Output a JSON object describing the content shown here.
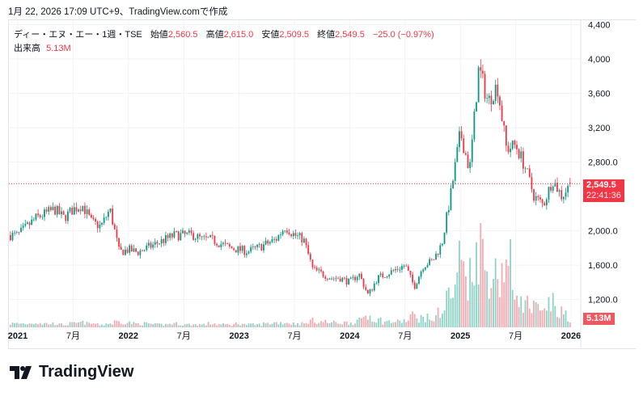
{
  "caption": "1月 22, 2026 17:09 UTC+9、TradingView.comで作成",
  "legend": {
    "symbol": "ディー・エヌ・エー・1週・TSE",
    "open_label": "始値",
    "open": "2,560.5",
    "high_label": "高値",
    "high": "2,615.0",
    "low_label": "安値",
    "low": "2,509.5",
    "close_label": "終値",
    "close": "2,549.5",
    "change": "−25.0 (−0.97%)",
    "volume_label": "出来高",
    "volume": "5.13M"
  },
  "price_tag": {
    "price": "2,549.5",
    "countdown": "22:41:36"
  },
  "volume_tag": "5.13M",
  "brand": "TradingView",
  "colors": {
    "up": "#089981",
    "down": "#f23645",
    "up_vol": "#8fd3c6",
    "down_vol": "#f7a9b0"
  },
  "chart_data": {
    "type": "candlestick",
    "interval": "1 week",
    "y_ticks": [
      "4,400",
      "4,000",
      "3,600",
      "3,200",
      "2,800.0",
      "2,000.0",
      "1,600.0",
      "1,200.0"
    ],
    "y_tick_values": [
      4400,
      4000,
      3600,
      3200,
      2800,
      2000,
      1600,
      1200
    ],
    "x_ticks": [
      "2021",
      "7月",
      "2022",
      "7月",
      "2023",
      "7月",
      "2024",
      "7月",
      "2025",
      "7月",
      "2026"
    ],
    "x_tick_months": [
      0,
      6,
      12,
      18,
      24,
      30,
      36,
      42,
      48,
      54,
      60
    ],
    "start_month": "2021-01",
    "monthly_close": [
      1950,
      2050,
      2150,
      2200,
      2250,
      2150,
      2250,
      2300,
      2100,
      2050,
      2250,
      1750,
      1780,
      1750,
      1800,
      1850,
      1900,
      1950,
      1950,
      1950,
      1900,
      1900,
      1850,
      1800,
      1780,
      1760,
      1800,
      1850,
      1900,
      2050,
      1950,
      1900,
      1550,
      1500,
      1450,
      1450,
      1400,
      1500,
      1250,
      1450,
      1500,
      1550,
      1600,
      1350,
      1600,
      1650,
      1850,
      2450,
      3150,
      2700,
      3900,
      3500,
      3700,
      2950,
      3000,
      2750,
      2400,
      2300,
      2600,
      2400,
      2549.5
    ],
    "monthly_volume_m": [
      4,
      4,
      5,
      4,
      4,
      3,
      4,
      5,
      4,
      3,
      4,
      6,
      5,
      4,
      4,
      3,
      3,
      4,
      3,
      3,
      3,
      4,
      3,
      3,
      4,
      3,
      3,
      4,
      5,
      5,
      4,
      4,
      7,
      6,
      5,
      5,
      5,
      7,
      12,
      8,
      6,
      6,
      7,
      12,
      10,
      9,
      18,
      35,
      70,
      55,
      85,
      60,
      55,
      65,
      40,
      25,
      20,
      15,
      25,
      15,
      5.13
    ],
    "last_close": 2549.5
  }
}
